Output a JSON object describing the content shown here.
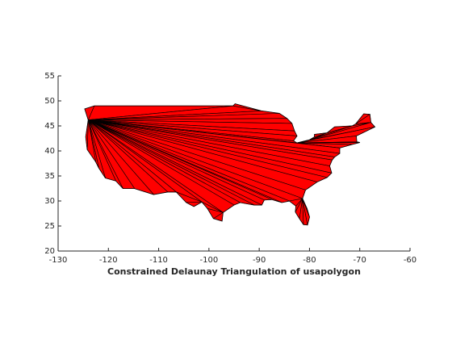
{
  "chart_data": {
    "type": "polygon",
    "xlabel": "Constrained Delaunay Triangulation of usapolygon",
    "color": "#ff0000",
    "edge_color": "#000000",
    "x": [
      -124.7,
      -122.8,
      -95.2,
      -94.8,
      -89.6,
      -86,
      -84.5,
      -83.5,
      -83.0,
      -82.5,
      -83.2,
      -82.5,
      -80,
      -79,
      -79,
      -76.5,
      -75,
      -71.5,
      -70.8,
      -69.2,
      -68,
      -67.8,
      -67,
      -70.7,
      -70.6,
      -70,
      -71.5,
      -74,
      -74,
      -75,
      -75.5,
      -76,
      -75.6,
      -76.5,
      -78.5,
      -80.8,
      -81.4,
      -80.5,
      -80,
      -80.4,
      -81.2,
      -82,
      -82.8,
      -82.7,
      -84,
      -85.5,
      -87.5,
      -89,
      -89.5,
      -91,
      -93.8,
      -95,
      -97.2,
      -97.4,
      -99.1,
      -100.3,
      -101.4,
      -103,
      -104.5,
      -106.5,
      -108.2,
      -111,
      -114.8,
      -117.1,
      -118.5,
      -120.6,
      -121.9,
      -122.5,
      -124.2,
      -124.5,
      -124
    ],
    "y": [
      48.4,
      49.0,
      49.0,
      49.4,
      48.0,
      47.5,
      46.5,
      45.5,
      44,
      43,
      42,
      41.6,
      42.2,
      42.8,
      43.3,
      43.6,
      44.8,
      45,
      45.4,
      47.4,
      47.3,
      45.7,
      44.8,
      43,
      41.8,
      41.7,
      41.3,
      40.6,
      39.5,
      38.8,
      38.2,
      37,
      35.6,
      34.7,
      33.8,
      32.2,
      30.5,
      28.5,
      26.8,
      25.2,
      25.3,
      26.5,
      27.8,
      29,
      30,
      29.7,
      30.3,
      30.2,
      29.2,
      29.2,
      29.7,
      29.2,
      27.7,
      26,
      26.5,
      28.5,
      29.8,
      28.9,
      29.7,
      31.8,
      31.8,
      31.3,
      32.5,
      32.5,
      34,
      34.6,
      36.6,
      37.8,
      40.3,
      42.8,
      46.2
    ],
    "xlim": [
      -130,
      -60
    ],
    "xticks": [
      -130,
      -120,
      -110,
      -100,
      -90,
      -80,
      -70,
      -60
    ],
    "ylim": [
      20,
      55
    ],
    "yticks": [
      20,
      25,
      30,
      35,
      40,
      45,
      50,
      55
    ]
  }
}
